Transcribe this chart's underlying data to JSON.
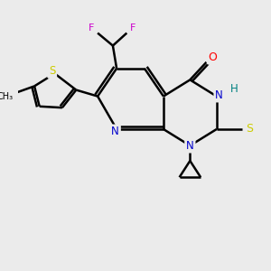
{
  "bg_color": "#ebebeb",
  "bond_color": "#000000",
  "bond_width": 1.8,
  "atom_colors": {
    "C": "#000000",
    "N": "#0000cc",
    "O": "#ff0000",
    "S": "#cccc00",
    "F": "#cc00cc",
    "H": "#008080"
  },
  "figsize": [
    3.0,
    3.0
  ],
  "dpi": 100,
  "xlim": [
    0,
    10
  ],
  "ylim": [
    0,
    10
  ],
  "fontsize": 8.5
}
